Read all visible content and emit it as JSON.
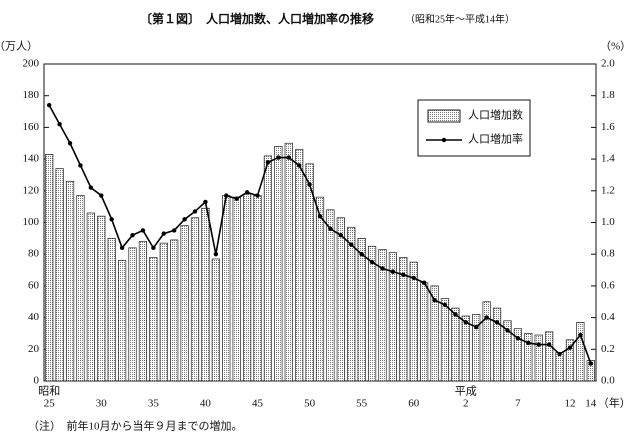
{
  "title": "〔第１図〕　人口増加数、人口増加率の推移",
  "subtitle": "（昭和25年～平成14年）",
  "note": "（注）　前年10月から当年９月までの増加。",
  "chart_data": {
    "type": "bar-line",
    "y_label": "（万人）",
    "y2_label": "（%）",
    "x_unit": "（年）",
    "eras": [
      {
        "label": "昭和",
        "start": 0
      },
      {
        "label": "平成",
        "start": 40
      }
    ],
    "categories": [
      "25",
      null,
      null,
      null,
      null,
      "30",
      null,
      null,
      null,
      null,
      "35",
      null,
      null,
      null,
      null,
      "40",
      null,
      null,
      null,
      null,
      "45",
      null,
      null,
      null,
      null,
      "50",
      null,
      null,
      null,
      null,
      "55",
      null,
      null,
      null,
      null,
      "60",
      null,
      null,
      null,
      null,
      "2",
      null,
      null,
      null,
      null,
      "7",
      null,
      null,
      null,
      null,
      "12",
      null,
      "14"
    ],
    "series": [
      {
        "name": "人口増加数",
        "type": "bar",
        "color": "#d9d9d9",
        "values": [
          143,
          134,
          126,
          117,
          106,
          104,
          90,
          76,
          84,
          88,
          78,
          87,
          89,
          98,
          103,
          109,
          77,
          117,
          116,
          118,
          117,
          142,
          148,
          150,
          146,
          137,
          116,
          108,
          103,
          97,
          90,
          85,
          83,
          81,
          78,
          75,
          62,
          60,
          52,
          46,
          41,
          42,
          50,
          46,
          38,
          33,
          30,
          29,
          31,
          18,
          26,
          37,
          13
        ]
      },
      {
        "name": "人口増加率",
        "type": "line",
        "axis": "y2",
        "color": "#000000",
        "values": [
          1.74,
          1.62,
          1.5,
          1.36,
          1.22,
          1.17,
          1.02,
          0.84,
          0.92,
          0.95,
          0.84,
          0.93,
          0.95,
          1.02,
          1.07,
          1.13,
          0.8,
          1.17,
          1.15,
          1.19,
          1.17,
          1.38,
          1.41,
          1.41,
          1.36,
          1.24,
          1.04,
          0.96,
          0.92,
          0.86,
          0.8,
          0.75,
          0.71,
          0.69,
          0.67,
          0.65,
          0.62,
          0.51,
          0.48,
          0.42,
          0.37,
          0.34,
          0.4,
          0.37,
          0.32,
          0.27,
          0.24,
          0.23,
          0.23,
          0.17,
          0.21,
          0.29,
          0.11
        ]
      }
    ],
    "ylim": [
      0,
      200
    ],
    "yticks": [
      0,
      20,
      40,
      60,
      80,
      100,
      120,
      140,
      160,
      180,
      200
    ],
    "y2lim": [
      0,
      2
    ],
    "y2ticks": [
      {
        "value": 0,
        "label": "0.0"
      },
      0.2,
      0.4,
      0.6,
      0.8,
      {
        "value": 1,
        "label": "1.0"
      },
      1.2,
      1.4,
      1.6,
      1.8,
      {
        "value": 2,
        "label": "2.0"
      }
    ]
  }
}
